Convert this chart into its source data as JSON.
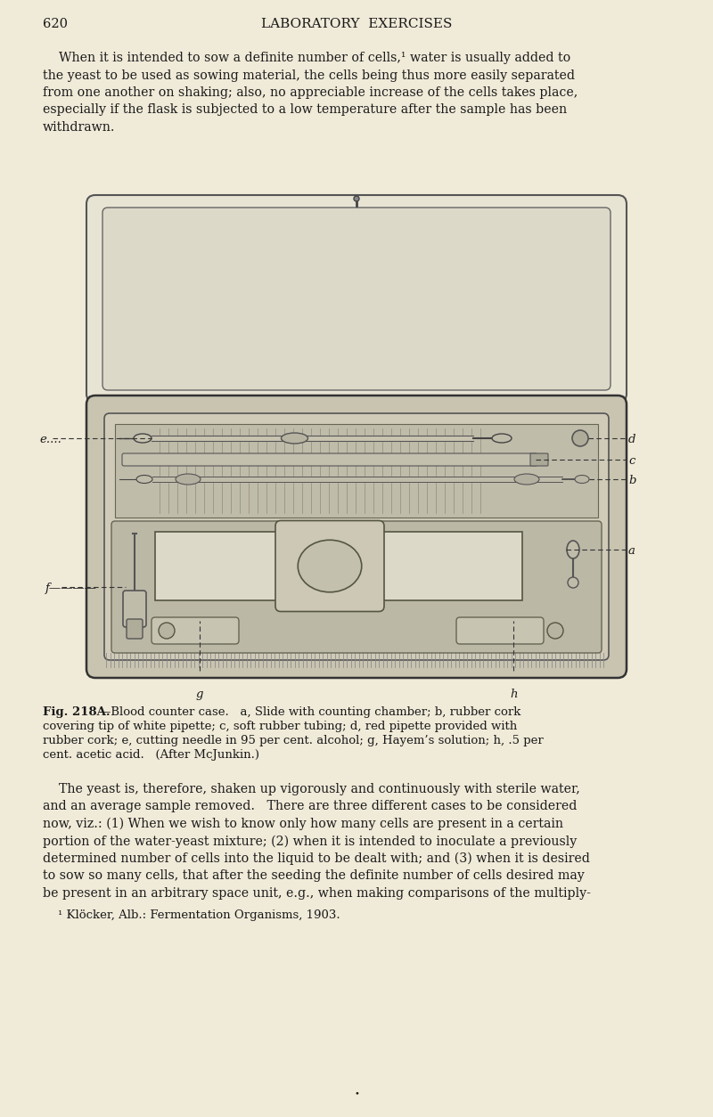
{
  "bg_color": "#f0ead8",
  "text_color": "#1a1a1a",
  "page_number": "620",
  "header": "LABORATORY  EXERCISES",
  "para1_lines": [
    "    When it is intended to sow a definite number of cells,¹ water is usually added to",
    "the yeast to be used as sowing material, the cells being thus more easily separated",
    "from one another on shaking; also, no appreciable increase of the cells takes place,",
    "especially if the flask is subjected to a low temperature after the sample has been",
    "withdrawn."
  ],
  "fig_caption_bold": "Fig. 218A.",
  "fig_caption_rest_line0": "—Blood counter case.   a, Slide with counting chamber; b, rubber cork",
  "fig_caption_rest_lines": [
    "covering tip of white pipette; c, soft rubber tubing; d, red pipette provided with",
    "rubber cork; e, cutting needle in 95 per cent. alcohol; g, Hayem’s solution; h, .5 per",
    "cent. acetic acid.   (After McJunkin.)"
  ],
  "para2_lines": [
    "    The yeast is, therefore, shaken up vigorously and continuously with sterile water,",
    "and an average sample removed.   There are three different cases to be considered",
    "now, viz.: (1) When we wish to know only how many cells are present in a certain",
    "portion of the water-yeast mixture; (2) when it is intended to inoculate a previously",
    "determined number of cells into the liquid to be dealt with; and (3) when it is desired",
    "to sow so many cells, that after the seeding the definite number of cells desired may",
    "be present in an arbitrary space unit, e.g., when making comparisons of the multiply-"
  ],
  "footnote": "    ¹ Klöcker, Alb.: Fermentation Organisms, 1903."
}
